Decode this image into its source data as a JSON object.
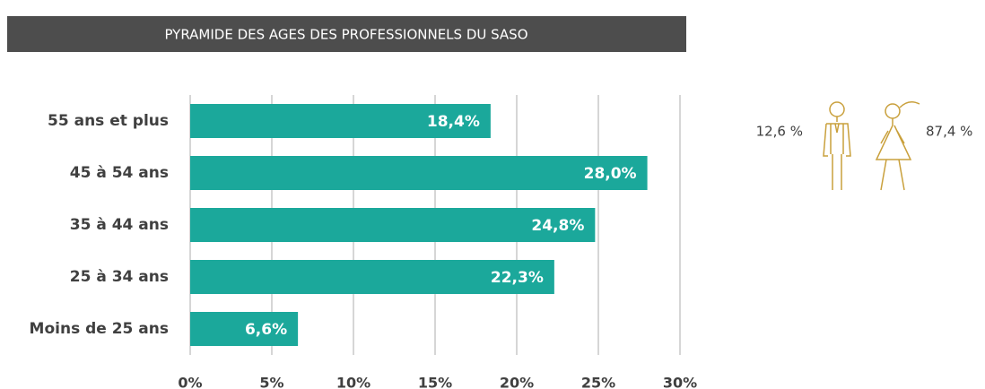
{
  "chart_data": {
    "type": "hbar",
    "title": "PYRAMIDE DES AGES DES PROFESSIONNELS DU SASO",
    "categories": [
      "55 ans et plus",
      "45 à 54 ans",
      "35 à 44 ans",
      "25 à 34 ans",
      "Moins de 25 ans"
    ],
    "values": [
      18.4,
      28.0,
      24.8,
      22.3,
      6.6
    ],
    "value_labels": [
      "18,4%",
      "28,0%",
      "24,8%",
      "22,3%",
      "6,6%"
    ],
    "color": "#1ba89b",
    "xlim": [
      0,
      30
    ],
    "xticks": [
      {
        "value": 0,
        "label": "0%"
      },
      {
        "value": 5,
        "label": "5%"
      },
      {
        "value": 10,
        "label": "10%"
      },
      {
        "value": 15,
        "label": "15%"
      },
      {
        "value": 20,
        "label": "20%"
      },
      {
        "value": 25,
        "label": "25%"
      },
      {
        "value": 30,
        "label": "30%"
      }
    ],
    "grid": true,
    "annotations": [
      "12,6 %",
      "87,4 %"
    ]
  }
}
